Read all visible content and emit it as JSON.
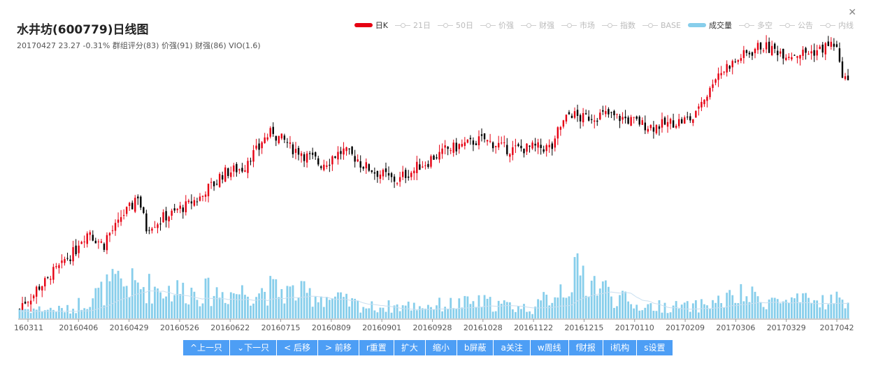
{
  "header": {
    "title": "水井坊(600779)日线图",
    "subtitle": "20170427 23.27 -0.31% 群组评分(83) 价强(91) 财强(86) VIO(1.6)"
  },
  "legend": [
    {
      "label": "日K",
      "active": true,
      "color": "#e60012",
      "style": "bar"
    },
    {
      "label": "21日",
      "active": false,
      "style": "line"
    },
    {
      "label": "50日",
      "active": false,
      "style": "line"
    },
    {
      "label": "价强",
      "active": false,
      "style": "line"
    },
    {
      "label": "财强",
      "active": false,
      "style": "line"
    },
    {
      "label": "市场",
      "active": false,
      "style": "line"
    },
    {
      "label": "指数",
      "active": false,
      "style": "line"
    },
    {
      "label": "BASE",
      "active": false,
      "style": "line"
    },
    {
      "label": "成交量",
      "active": true,
      "color": "#87ceeb",
      "style": "bar"
    },
    {
      "label": "多空",
      "active": false,
      "style": "line"
    },
    {
      "label": "公告",
      "active": false,
      "style": "line"
    },
    {
      "label": "内线",
      "active": false,
      "style": "line"
    }
  ],
  "close_icon": "close-icon",
  "toolbar": [
    {
      "label": "^上一只"
    },
    {
      "label": "⌄下一只"
    },
    {
      "label": "< 后移"
    },
    {
      "label": "> 前移"
    },
    {
      "label": "r重置"
    },
    {
      "label": "扩大"
    },
    {
      "label": "缩小"
    },
    {
      "label": "b屏蔽"
    },
    {
      "label": "a关注"
    },
    {
      "label": "w周线"
    },
    {
      "label": "f财报"
    },
    {
      "label": "i机构"
    },
    {
      "label": "s设置"
    }
  ],
  "chart_data": {
    "type": "candlestick",
    "up_color": "#e60012",
    "down_color": "#000000",
    "volume_color": "#87ceeb",
    "x_tick_labels": [
      "160311",
      "20160406",
      "20160429",
      "20160526",
      "20160622",
      "20160715",
      "20160809",
      "20160901",
      "20160928",
      "20161028",
      "20161122",
      "20161215",
      "20170110",
      "20170209",
      "20170306",
      "20170329",
      "2017042"
    ],
    "close_anchors": [
      {
        "date": "20160311",
        "close": 12.4
      },
      {
        "date": "20160406",
        "close": 15.0
      },
      {
        "date": "20160415",
        "close": 16.2
      },
      {
        "date": "20160422",
        "close": 15.5
      },
      {
        "date": "20160429",
        "close": 16.5
      },
      {
        "date": "20160510",
        "close": 17.9
      },
      {
        "date": "20160513",
        "close": 16.3
      },
      {
        "date": "20160526",
        "close": 17.0
      },
      {
        "date": "20160608",
        "close": 17.7
      },
      {
        "date": "20160622",
        "close": 19.0
      },
      {
        "date": "20160630",
        "close": 19.2
      },
      {
        "date": "20160715",
        "close": 21.0
      },
      {
        "date": "20160725",
        "close": 20.2
      },
      {
        "date": "20160809",
        "close": 19.4
      },
      {
        "date": "20160820",
        "close": 20.1
      },
      {
        "date": "20160901",
        "close": 19.2
      },
      {
        "date": "20160915",
        "close": 18.6
      },
      {
        "date": "20160928",
        "close": 19.4
      },
      {
        "date": "20161010",
        "close": 20.1
      },
      {
        "date": "20161028",
        "close": 20.6
      },
      {
        "date": "20161110",
        "close": 20.1
      },
      {
        "date": "20161122",
        "close": 20.2
      },
      {
        "date": "20161201",
        "close": 20.2
      },
      {
        "date": "20161210",
        "close": 22.0
      },
      {
        "date": "20161215",
        "close": 21.6
      },
      {
        "date": "20161228",
        "close": 21.8
      },
      {
        "date": "20170110",
        "close": 21.5
      },
      {
        "date": "20170120",
        "close": 21.2
      },
      {
        "date": "20170209",
        "close": 21.6
      },
      {
        "date": "20170222",
        "close": 23.8
      },
      {
        "date": "20170306",
        "close": 24.6
      },
      {
        "date": "20170315",
        "close": 25.1
      },
      {
        "date": "20170329",
        "close": 24.7
      },
      {
        "date": "20170410",
        "close": 24.8
      },
      {
        "date": "20170420",
        "close": 25.2
      },
      {
        "date": "20170427",
        "close": 23.27
      }
    ],
    "volume_anchors": [
      {
        "date": "20160311",
        "volume": 0.15
      },
      {
        "date": "20160406",
        "volume": 0.14
      },
      {
        "date": "20160429",
        "volume": 0.55
      },
      {
        "date": "20160526",
        "volume": 0.45
      },
      {
        "date": "20160622",
        "volume": 0.4
      },
      {
        "date": "20160715",
        "volume": 0.45
      },
      {
        "date": "20160809",
        "volume": 0.35
      },
      {
        "date": "20160901",
        "volume": 0.18
      },
      {
        "date": "20160928",
        "volume": 0.2
      },
      {
        "date": "20161028",
        "volume": 0.25
      },
      {
        "date": "20161122",
        "volume": 0.15
      },
      {
        "date": "20161215",
        "volume": 0.7
      },
      {
        "date": "20170110",
        "volume": 0.2
      },
      {
        "date": "20170209",
        "volume": 0.18
      },
      {
        "date": "20170306",
        "volume": 0.35
      },
      {
        "date": "20170329",
        "volume": 0.25
      },
      {
        "date": "20170427",
        "volume": 0.3
      }
    ],
    "volume_unit": "relative"
  }
}
